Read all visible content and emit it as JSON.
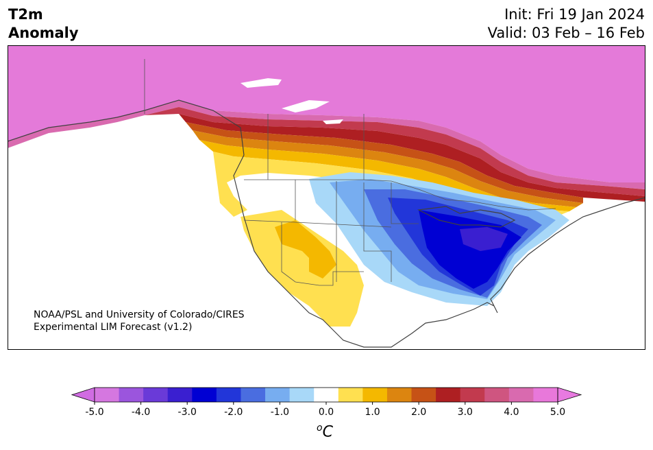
{
  "header": {
    "title_line1": "T2m",
    "title_line2": "Anomaly",
    "init": "Init: Fri 19 Jan 2024",
    "valid": "Valid: 03 Feb – 16 Feb"
  },
  "credit": {
    "line1": "NOAA/PSL and University of Colorado/CIRES",
    "line2": "Experimental LIM Forecast (v1.2)"
  },
  "colorbar": {
    "unit_base": "C",
    "unit_super": "o",
    "tick_labels": [
      "-5.0",
      "-4.0",
      "-3.0",
      "-2.0",
      "-1.0",
      "0.0",
      "1.0",
      "2.0",
      "3.0",
      "4.0",
      "5.0"
    ],
    "bins": [
      "#d577e0",
      "#9b55dd",
      "#6a3ad8",
      "#3a1fd0",
      "#0000d3",
      "#2236d9",
      "#4a6de0",
      "#77adf0",
      "#a8d8f8",
      "#ffffff",
      "#ffe050",
      "#f4b800",
      "#dc8510",
      "#c65216",
      "#ae1f22",
      "#c23a4e",
      "#cf5580",
      "#d96aaf",
      "#e878da"
    ],
    "min_extend": "#d06ce2",
    "max_extend": "#e87ae0"
  }
}
